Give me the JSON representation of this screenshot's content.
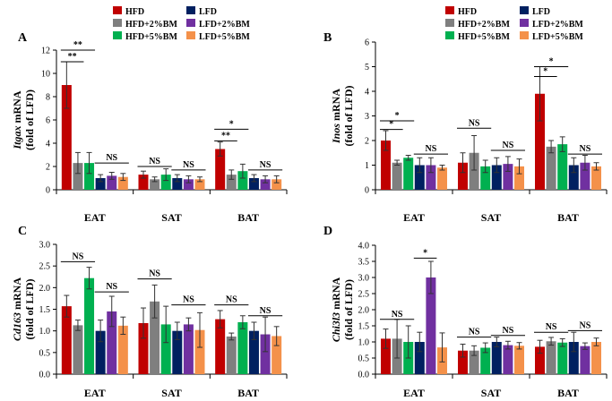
{
  "chart_data": [
    {
      "type": "bar",
      "panel_label": "A",
      "ylabel_gene": "Itgax",
      "ylabel_rest": " mRNA",
      "ylabel_line2": "(fold of LFD)",
      "categories": [
        "EAT",
        "SAT",
        "BAT"
      ],
      "ylim": [
        0,
        12
      ],
      "yticks": [
        0,
        2,
        4,
        6,
        8,
        10,
        12
      ],
      "series": [
        {
          "name": "HFD",
          "values": [
            9.0,
            1.3,
            3.5
          ],
          "errors": [
            2.0,
            0.3,
            0.6
          ]
        },
        {
          "name": "HFD+2%BM",
          "values": [
            2.3,
            0.9,
            1.3
          ],
          "errors": [
            0.9,
            0.2,
            0.4
          ]
        },
        {
          "name": "HFD+5%BM",
          "values": [
            2.3,
            1.3,
            1.6
          ],
          "errors": [
            0.9,
            0.5,
            0.6
          ]
        },
        {
          "name": "LFD",
          "values": [
            1.0,
            1.0,
            1.0
          ],
          "errors": [
            0.3,
            0.3,
            0.3
          ]
        },
        {
          "name": "LFD+2%BM",
          "values": [
            1.2,
            0.9,
            0.9
          ],
          "errors": [
            0.3,
            0.3,
            0.3
          ]
        },
        {
          "name": "LFD+5%BM",
          "values": [
            1.1,
            0.9,
            0.9
          ],
          "errors": [
            0.3,
            0.2,
            0.3
          ]
        }
      ],
      "annotations": [
        {
          "text": "**",
          "from": [
            0,
            0
          ],
          "to": [
            0,
            2
          ],
          "y": 12.0
        },
        {
          "text": "**",
          "from": [
            0,
            0
          ],
          "to": [
            0,
            1
          ],
          "y": 11.0
        },
        {
          "text": "NS",
          "from": [
            0,
            3
          ],
          "to": [
            0,
            5
          ],
          "y": 2.3
        },
        {
          "text": "NS",
          "from": [
            1,
            0
          ],
          "to": [
            1,
            2
          ],
          "y": 2.0
        },
        {
          "text": "NS",
          "from": [
            1,
            3
          ],
          "to": [
            1,
            5
          ],
          "y": 1.7
        },
        {
          "text": "*",
          "from": [
            2,
            0
          ],
          "to": [
            2,
            2
          ],
          "y": 5.2
        },
        {
          "text": "**",
          "from": [
            2,
            0
          ],
          "to": [
            2,
            1
          ],
          "y": 4.2
        },
        {
          "text": "NS",
          "from": [
            2,
            3
          ],
          "to": [
            2,
            5
          ],
          "y": 1.7
        }
      ]
    },
    {
      "type": "bar",
      "panel_label": "B",
      "ylabel_gene": "Inos",
      "ylabel_rest": " mRNA",
      "ylabel_line2": "(fold of LFD)",
      "categories": [
        "EAT",
        "SAT",
        "BAT"
      ],
      "ylim": [
        0,
        6
      ],
      "yticks": [
        0,
        1,
        2,
        3,
        4,
        5,
        6
      ],
      "series": [
        {
          "name": "HFD",
          "values": [
            2.0,
            1.1,
            3.9
          ],
          "errors": [
            0.4,
            0.4,
            1.1
          ]
        },
        {
          "name": "HFD+2%BM",
          "values": [
            1.1,
            1.5,
            1.75
          ],
          "errors": [
            0.1,
            0.7,
            0.25
          ]
        },
        {
          "name": "HFD+5%BM",
          "values": [
            1.3,
            0.95,
            1.85
          ],
          "errors": [
            0.1,
            0.25,
            0.3
          ]
        },
        {
          "name": "LFD",
          "values": [
            1.0,
            1.0,
            1.0
          ],
          "errors": [
            0.3,
            0.3,
            0.3
          ]
        },
        {
          "name": "LFD+2%BM",
          "values": [
            1.0,
            1.05,
            1.1
          ],
          "errors": [
            0.3,
            0.3,
            0.3
          ]
        },
        {
          "name": "LFD+5%BM",
          "values": [
            0.9,
            0.95,
            0.95
          ],
          "errors": [
            0.1,
            0.3,
            0.15
          ]
        }
      ],
      "annotations": [
        {
          "text": "*",
          "from": [
            0,
            0
          ],
          "to": [
            0,
            2
          ],
          "y": 2.8
        },
        {
          "text": "*",
          "from": [
            0,
            0
          ],
          "to": [
            0,
            1
          ],
          "y": 2.45
        },
        {
          "text": "NS",
          "from": [
            0,
            3
          ],
          "to": [
            0,
            5
          ],
          "y": 1.45
        },
        {
          "text": "NS",
          "from": [
            1,
            0
          ],
          "to": [
            1,
            2
          ],
          "y": 2.5
        },
        {
          "text": "NS",
          "from": [
            1,
            3
          ],
          "to": [
            1,
            5
          ],
          "y": 1.6
        },
        {
          "text": "*",
          "from": [
            2,
            0
          ],
          "to": [
            2,
            2
          ],
          "y": 5.0
        },
        {
          "text": "*",
          "from": [
            2,
            0
          ],
          "to": [
            2,
            1
          ],
          "y": 4.6
        },
        {
          "text": "NS",
          "from": [
            2,
            3
          ],
          "to": [
            2,
            5
          ],
          "y": 1.45
        }
      ]
    },
    {
      "type": "bar",
      "panel_label": "C",
      "ylabel_gene": "Cd163",
      "ylabel_rest": " mRNA",
      "ylabel_line2": "(fold of LFD)",
      "categories": [
        "EAT",
        "SAT",
        "BAT"
      ],
      "ylim": [
        0,
        3
      ],
      "yticks": [
        "0.0",
        "0.5",
        "1.0",
        "1.5",
        "2.0",
        "2.5",
        "3.0"
      ],
      "series": [
        {
          "name": "HFD",
          "values": [
            1.57,
            1.18,
            1.27
          ],
          "errors": [
            0.25,
            0.35,
            0.2
          ]
        },
        {
          "name": "HFD+2%BM",
          "values": [
            1.13,
            1.68,
            0.87
          ],
          "errors": [
            0.12,
            0.38,
            0.08
          ]
        },
        {
          "name": "HFD+5%BM",
          "values": [
            2.22,
            1.15,
            1.2
          ],
          "errors": [
            0.25,
            0.42,
            0.15
          ]
        },
        {
          "name": "LFD",
          "values": [
            1.0,
            1.0,
            1.0
          ],
          "errors": [
            0.25,
            0.2,
            0.2
          ]
        },
        {
          "name": "LFD+2%BM",
          "values": [
            1.45,
            1.15,
            0.92
          ],
          "errors": [
            0.35,
            0.15,
            0.4
          ]
        },
        {
          "name": "LFD+5%BM",
          "values": [
            1.12,
            1.02,
            0.88
          ],
          "errors": [
            0.2,
            0.4,
            0.22
          ]
        }
      ],
      "annotations": [
        {
          "text": "NS",
          "from": [
            0,
            0
          ],
          "to": [
            0,
            2
          ],
          "y": 2.6
        },
        {
          "text": "NS",
          "from": [
            0,
            3
          ],
          "to": [
            0,
            5
          ],
          "y": 1.9
        },
        {
          "text": "NS",
          "from": [
            1,
            0
          ],
          "to": [
            1,
            2
          ],
          "y": 2.2
        },
        {
          "text": "NS",
          "from": [
            1,
            3
          ],
          "to": [
            1,
            5
          ],
          "y": 1.6
        },
        {
          "text": "NS",
          "from": [
            2,
            0
          ],
          "to": [
            2,
            2
          ],
          "y": 1.6
        },
        {
          "text": "NS",
          "from": [
            2,
            3
          ],
          "to": [
            2,
            5
          ],
          "y": 1.35
        }
      ]
    },
    {
      "type": "bar",
      "panel_label": "D",
      "ylabel_gene": "Chi3l3",
      "ylabel_rest": " mRNA",
      "ylabel_line2": "(fold of LFD)",
      "categories": [
        "EAT",
        "SAT",
        "BAT"
      ],
      "ylim": [
        0,
        4
      ],
      "yticks": [
        "0.0",
        "0.5",
        "1.0",
        "1.5",
        "2.0",
        "2.5",
        "3.0",
        "3.5",
        "4.0"
      ],
      "series": [
        {
          "name": "HFD",
          "values": [
            1.1,
            0.73,
            0.85
          ],
          "errors": [
            0.3,
            0.2,
            0.2
          ]
        },
        {
          "name": "HFD+2%BM",
          "values": [
            1.1,
            0.73,
            1.02
          ],
          "errors": [
            0.6,
            0.15,
            0.12
          ]
        },
        {
          "name": "HFD+5%BM",
          "values": [
            1.0,
            0.82,
            0.98
          ],
          "errors": [
            0.5,
            0.15,
            0.12
          ]
        },
        {
          "name": "LFD",
          "values": [
            1.0,
            1.0,
            1.0
          ],
          "errors": [
            0.3,
            0.15,
            0.3
          ]
        },
        {
          "name": "LFD+2%BM",
          "values": [
            3.0,
            0.9,
            0.87
          ],
          "errors": [
            0.5,
            0.12,
            0.1
          ]
        },
        {
          "name": "LFD+5%BM",
          "values": [
            0.83,
            0.88,
            1.0
          ],
          "errors": [
            0.45,
            0.1,
            0.12
          ]
        }
      ],
      "annotations": [
        {
          "text": "NS",
          "from": [
            0,
            0
          ],
          "to": [
            0,
            2
          ],
          "y": 1.7
        },
        {
          "text": "*",
          "from": [
            0,
            3
          ],
          "to": [
            0,
            4
          ],
          "y": 3.6
        },
        {
          "text": "NS",
          "from": [
            1,
            0
          ],
          "to": [
            1,
            2
          ],
          "y": 1.15
        },
        {
          "text": "NS",
          "from": [
            1,
            3
          ],
          "to": [
            1,
            5
          ],
          "y": 1.2
        },
        {
          "text": "NS",
          "from": [
            2,
            0
          ],
          "to": [
            2,
            2
          ],
          "y": 1.3
        },
        {
          "text": "NS",
          "from": [
            2,
            3
          ],
          "to": [
            2,
            5
          ],
          "y": 1.35
        }
      ]
    }
  ],
  "legend": {
    "names": [
      "HFD",
      "HFD+2%BM",
      "HFD+5%BM",
      "LFD",
      "LFD+2%BM",
      "LFD+5%BM"
    ],
    "colors": [
      "#c00000",
      "#7f7f7f",
      "#00b050",
      "#002060",
      "#7030a0",
      "#f4914a"
    ]
  },
  "colors": {
    "HFD": "#c00000",
    "HFD+2%BM": "#7f7f7f",
    "HFD+5%BM": "#00b050",
    "LFD": "#002060",
    "LFD+2%BM": "#7030a0",
    "LFD+5%BM": "#f4914a"
  }
}
